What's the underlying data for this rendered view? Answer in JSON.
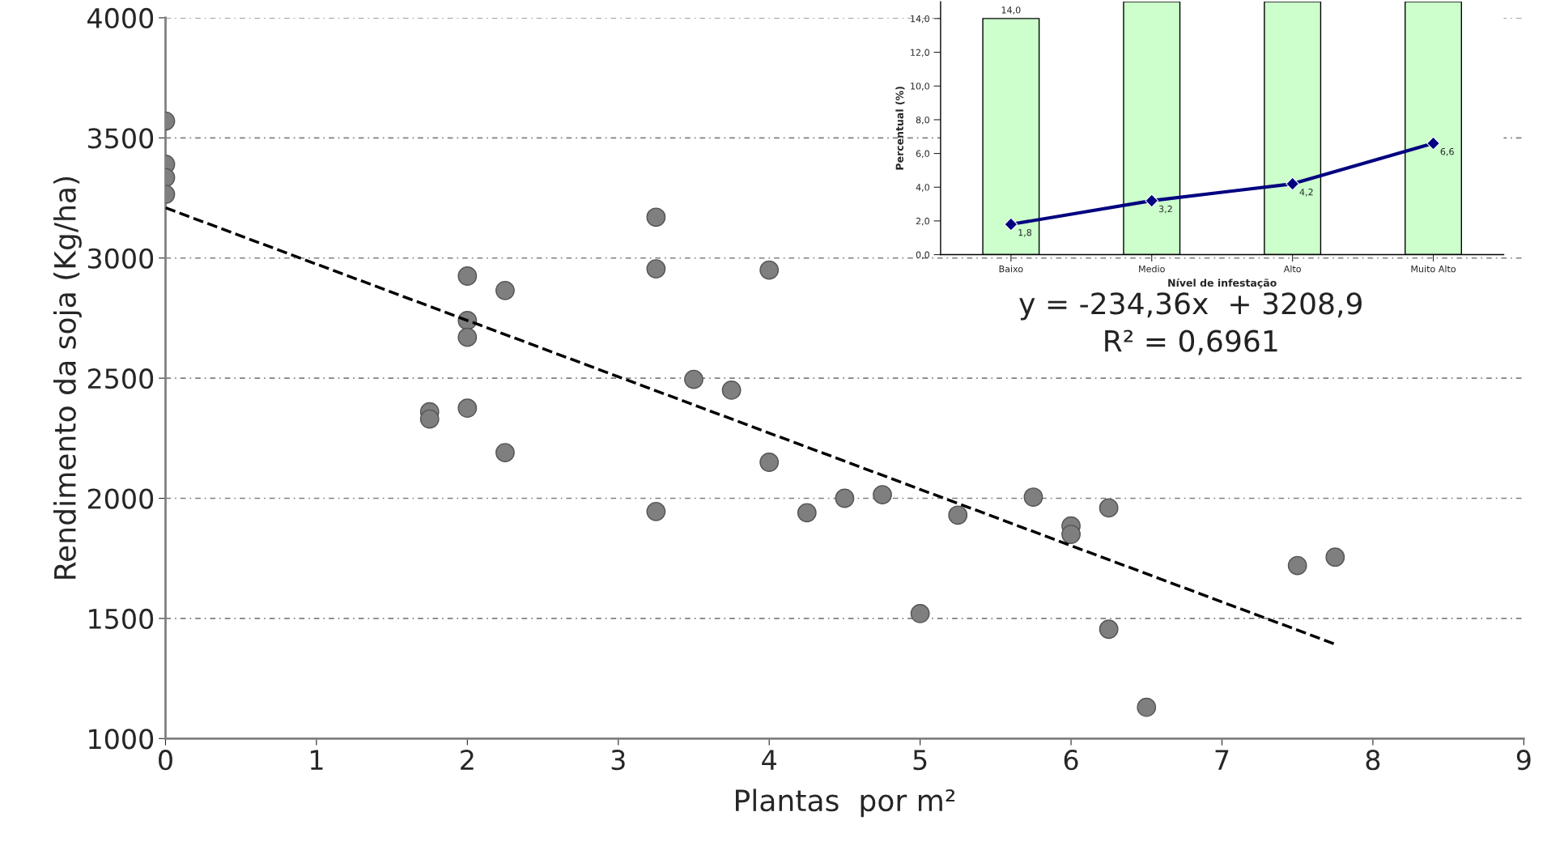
{
  "chart_data": [
    {
      "type": "scatter",
      "xlabel": "Plantas  por m²",
      "ylabel": "Rendimento da soja (Kg/ha)",
      "xlim": [
        0,
        9
      ],
      "ylim": [
        1000,
        4000
      ],
      "xticks": [
        0,
        1,
        2,
        3,
        4,
        5,
        6,
        7,
        8,
        9
      ],
      "yticks": [
        1000,
        1500,
        2000,
        2500,
        3000,
        3500,
        4000
      ],
      "grid": "y",
      "legend": false,
      "marker": "circle",
      "series": [
        {
          "type": "scatter",
          "color": "#7f7f7f",
          "x": [
            0,
            0,
            0,
            0,
            1.75,
            1.75,
            2,
            2,
            2,
            2,
            2.25,
            2.25,
            3.25,
            3.25,
            3.25,
            3.5,
            3.75,
            4,
            4,
            4.25,
            4.5,
            4.75,
            5,
            5.25,
            5.75,
            6,
            6,
            6.25,
            6.25,
            6.5,
            7.5,
            7.75
          ],
          "values": [
            3570,
            3390,
            3335,
            3265,
            2360,
            2330,
            2925,
            2740,
            2670,
            2375,
            2865,
            2190,
            3170,
            2955,
            1945,
            2495,
            2450,
            2950,
            2150,
            1940,
            2000,
            2015,
            1520,
            1930,
            2005,
            1885,
            1850,
            1960,
            1455,
            1130,
            1720,
            1755
          ]
        },
        {
          "type": "line",
          "color": "#000000",
          "line_style": "dashed",
          "marker": "none",
          "x": [
            0,
            7.75
          ],
          "values": [
            3209,
            1393
          ]
        }
      ],
      "annotations": [
        "y = -234,36x  + 3208,9",
        "R² = 0,6961"
      ]
    },
    {
      "type": "bar",
      "categories": [
        "Baixo",
        "Medio",
        "Alto",
        "Muito Alto"
      ],
      "xlabel": "Nível de infestação",
      "ylabel": "Percentual (%)",
      "ylim": [
        0,
        15
      ],
      "yticks": [
        {
          "value": 0,
          "label": "0,0"
        },
        {
          "value": 2,
          "label": "2,0"
        },
        {
          "value": 4,
          "label": "4,0"
        },
        {
          "value": 6,
          "label": "6,0"
        },
        {
          "value": 8,
          "label": "8,0"
        },
        {
          "value": 10,
          "label": "10,0"
        },
        {
          "value": 12,
          "label": "12,0"
        },
        {
          "value": 14,
          "label": "14,0"
        }
      ],
      "grid": false,
      "legend": false,
      "series": [
        {
          "type": "bar",
          "color": "#ccffcc",
          "values": [
            14,
            15,
            15,
            15
          ],
          "value_labels": [
            "14,0",
            null,
            null,
            null
          ]
        },
        {
          "type": "line",
          "color": "#000080",
          "marker": "diamond",
          "line_style": "solid",
          "values": [
            1.8,
            3.2,
            4.2,
            6.6
          ],
          "value_labels": [
            "1,8",
            "3,2",
            "4,2",
            "6,6"
          ]
        }
      ]
    }
  ]
}
